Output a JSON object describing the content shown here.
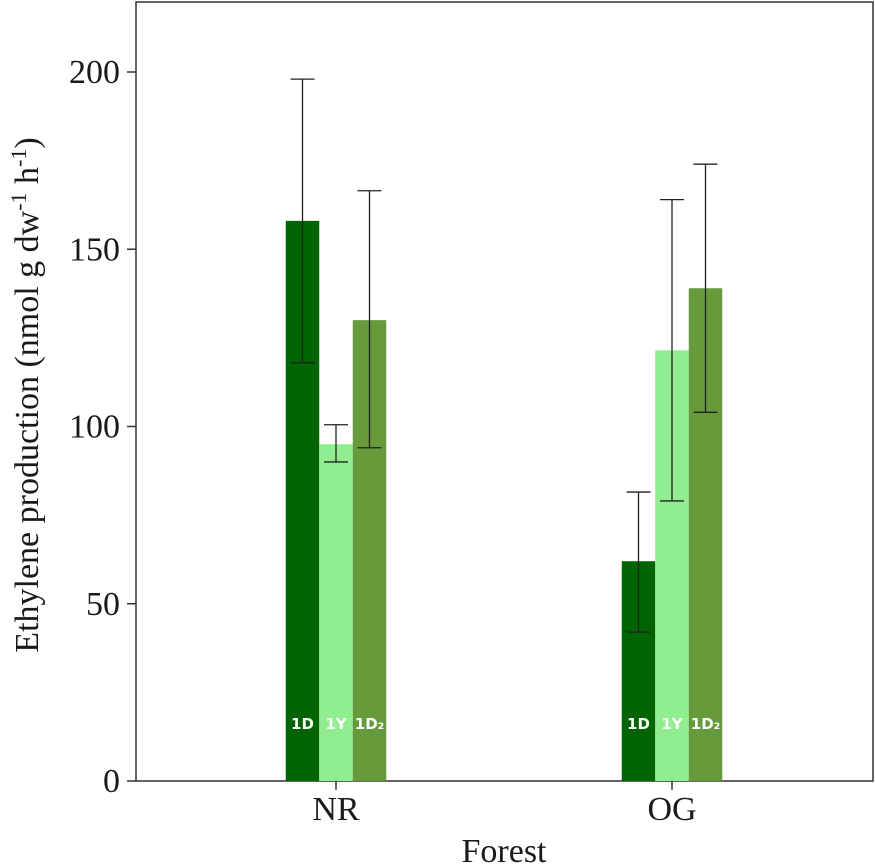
{
  "chart_data": {
    "type": "bar",
    "xlabel": "Forest",
    "ylabel": "Ethylene production (nmol g dw",
    "ylabel_sup1": "-1",
    "ylabel_mid": " h",
    "ylabel_sup2": "-1",
    "ylabel_end": ")",
    "ylim": [
      0,
      220
    ],
    "yticks": [
      "0",
      "50",
      "100",
      "150",
      "200"
    ],
    "ytick_values": [
      0,
      50,
      100,
      150,
      200
    ],
    "categories": [
      "NR",
      "OG"
    ],
    "series": [
      {
        "name": "1D",
        "color": "#006400",
        "values": [
          158,
          62
        ],
        "err_low": [
          118,
          42
        ],
        "err_high": [
          198,
          81.5
        ]
      },
      {
        "name": "1Y",
        "color": "#90ee90",
        "values": [
          95,
          121.5
        ],
        "err_low": [
          90,
          79
        ],
        "err_high": [
          100.5,
          164
        ]
      },
      {
        "name": "1D₂",
        "color": "#669a3a",
        "values": [
          130,
          139
        ],
        "err_low": [
          94,
          104
        ],
        "err_high": [
          166.5,
          174
        ]
      }
    ],
    "grid": false,
    "legend": "none"
  }
}
